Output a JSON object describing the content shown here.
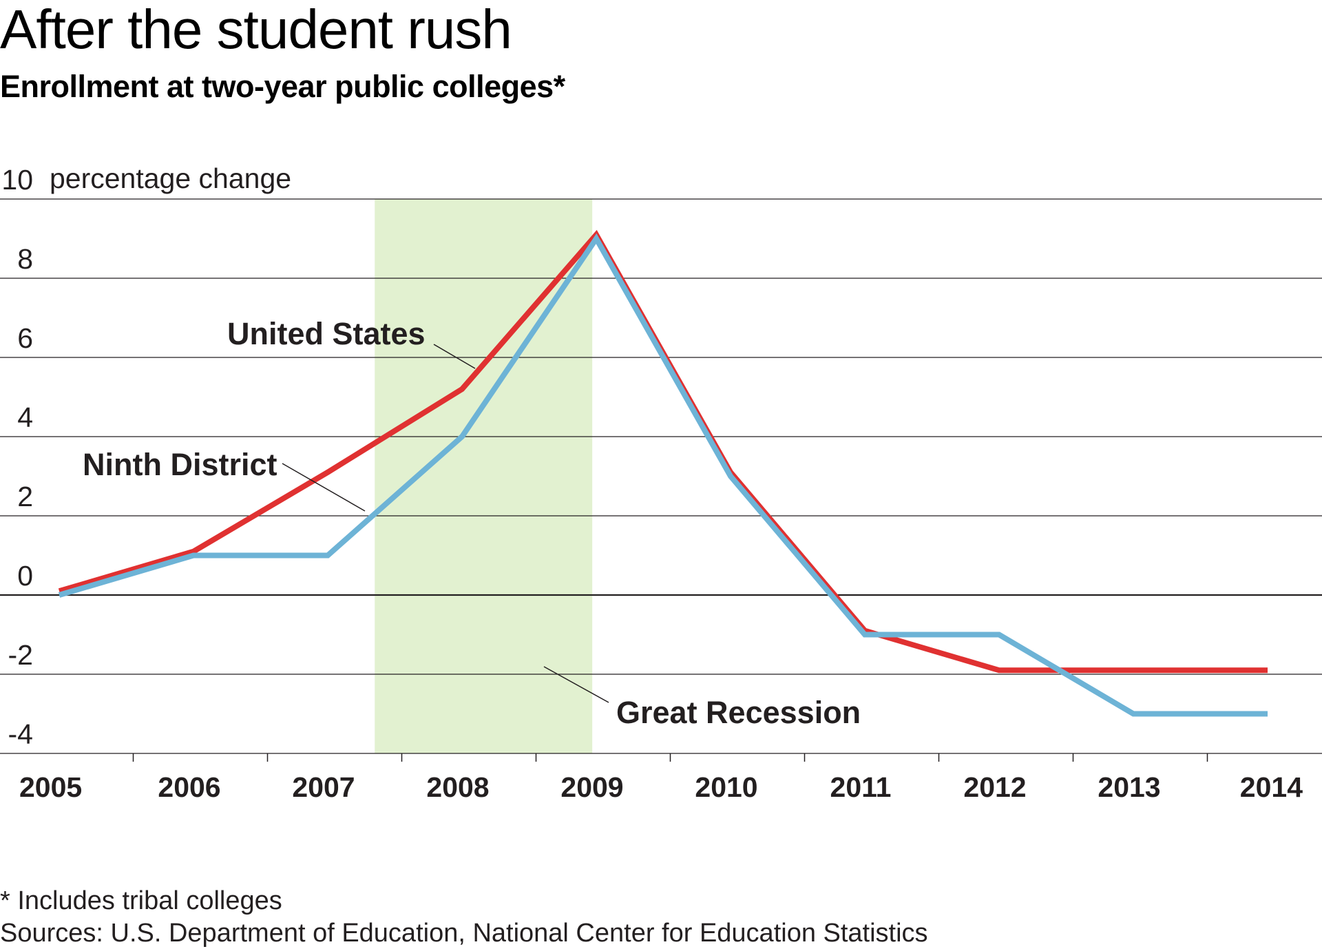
{
  "title": "After the student rush",
  "subtitle": "Enrollment at two-year public colleges*",
  "footnote": "* Includes tribal colleges",
  "sources": "Sources: U.S. Department of Education, National Center for Education Statistics",
  "chart_data": {
    "type": "line",
    "x": [
      "2005",
      "2006",
      "2007",
      "2008",
      "2009",
      "2010",
      "2011",
      "2012",
      "2013",
      "2014"
    ],
    "series": [
      {
        "name": "United States",
        "color": "#e03131",
        "values": [
          0.1,
          1.1,
          3.1,
          5.2,
          9.1,
          3.1,
          -0.9,
          -1.9,
          -1.9,
          -1.9
        ]
      },
      {
        "name": "Ninth District",
        "color": "#6db3d6",
        "values": [
          0.0,
          1.0,
          1.0,
          4.0,
          9.0,
          3.0,
          -1.0,
          -1.0,
          -3.0,
          -3.0
        ]
      }
    ],
    "ylabel": "percentage change",
    "ylim": [
      -4,
      10
    ],
    "yticks": [
      10,
      8,
      6,
      4,
      2,
      0,
      -2,
      -4
    ],
    "grid": true,
    "shaded_region": {
      "label": "Great Recession",
      "start": 2007.35,
      "end": 2008.97,
      "color": "#e2f1d0"
    }
  }
}
